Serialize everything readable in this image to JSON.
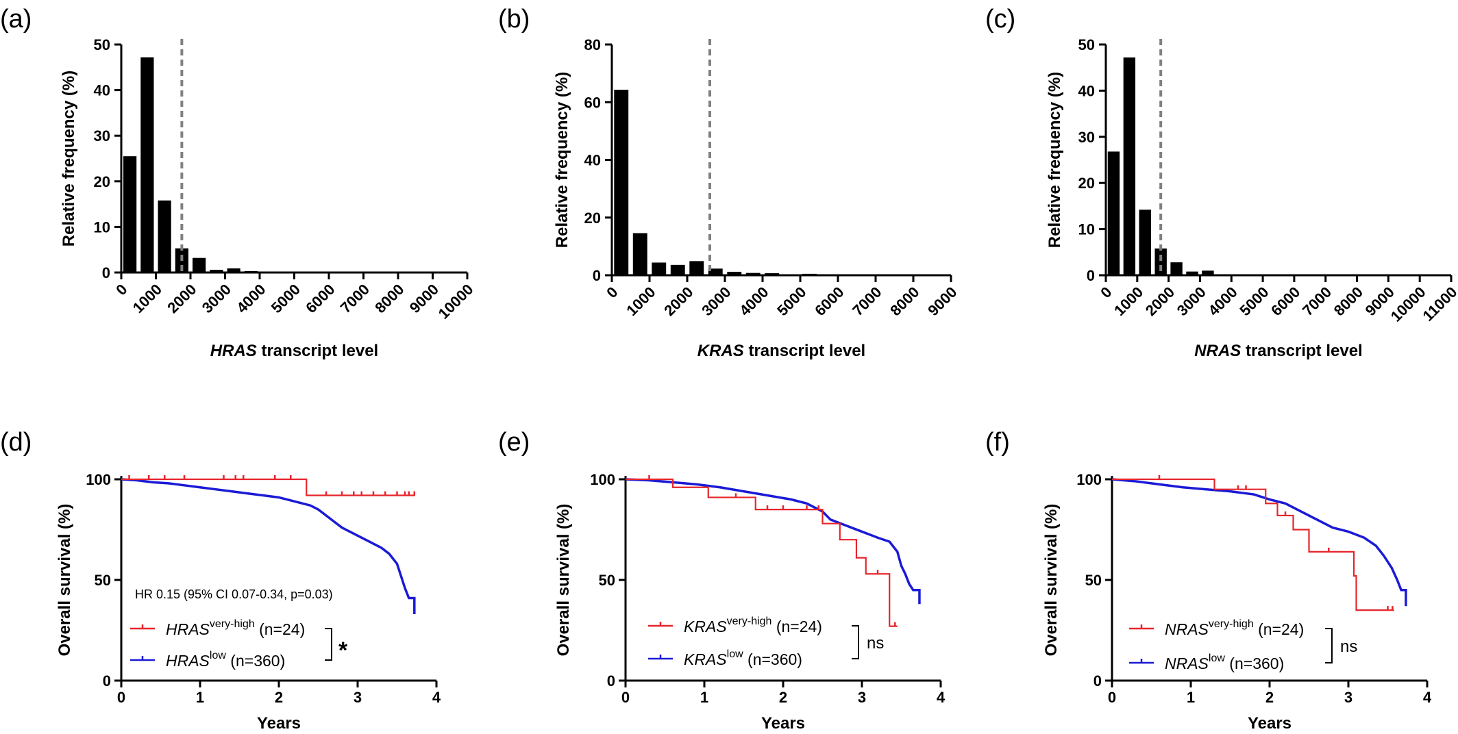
{
  "colors": {
    "bar": "#000000",
    "cutoff_line": "#808080",
    "very_high": "#e8242b",
    "low": "#1a1ad6"
  },
  "chart_data": [
    {
      "panel": "(a)",
      "type": "bar",
      "ylabel": "Relative frequency  (%)",
      "xlabel_gene": "HRAS",
      "xlabel_rest": " transcript level",
      "ylim": [
        0,
        50
      ],
      "yticks": [
        "0",
        "10",
        "20",
        "30",
        "40",
        "50"
      ],
      "xticks": [
        "0",
        "1000",
        "2000",
        "3000",
        "4000",
        "5000",
        "6000",
        "7000",
        "8000",
        "9000",
        "10000"
      ],
      "xmax": 10000,
      "bin_width": 500,
      "values": [
        25.5,
        47.2,
        15.8,
        5.3,
        3.2,
        0.6,
        0.9,
        0.3,
        0.1,
        0,
        0,
        0,
        0,
        0,
        0,
        0,
        0,
        0,
        0,
        0
      ],
      "cutoff": 1750
    },
    {
      "panel": "(b)",
      "type": "bar",
      "ylabel": "Relative frequency (%)",
      "xlabel_gene": "KRAS",
      "xlabel_rest": " transcript level",
      "ylim": [
        0,
        80
      ],
      "yticks": [
        "0",
        "20",
        "40",
        "60",
        "80"
      ],
      "xticks": [
        "0",
        "1000",
        "2000",
        "3000",
        "4000",
        "5000",
        "6000",
        "7000",
        "8000",
        "9000"
      ],
      "xmax": 9000,
      "bin_width": 500,
      "values": [
        64.3,
        14.6,
        4.4,
        3.6,
        4.9,
        2.3,
        1.2,
        0.8,
        0.7,
        0.3,
        0.5,
        0.1,
        0.1,
        0,
        0,
        0,
        0,
        0
      ],
      "cutoff": 2600
    },
    {
      "panel": "(c)",
      "type": "bar",
      "ylabel": "Relative frequency (%)",
      "xlabel_gene": "NRAS",
      "xlabel_rest": " transcript level",
      "ylim": [
        0,
        50
      ],
      "yticks": [
        "0",
        "10",
        "20",
        "30",
        "40",
        "50"
      ],
      "xticks": [
        "0",
        "1000",
        "2000",
        "3000",
        "4000",
        "5000",
        "6000",
        "7000",
        "8000",
        "9000",
        "10000",
        "11000"
      ],
      "xmax": 11000,
      "bin_width": 500,
      "values": [
        26.8,
        47.2,
        14.2,
        5.8,
        2.8,
        0.8,
        1.0,
        0.1,
        0,
        0,
        0,
        0,
        0,
        0,
        0,
        0,
        0,
        0,
        0,
        0,
        0,
        0
      ],
      "cutoff": 1750
    },
    {
      "panel": "(d)",
      "type": "line",
      "ylabel": "Overall survival (%)",
      "xlabel": "Years",
      "ylim": [
        0,
        100
      ],
      "xlim": [
        0,
        4
      ],
      "yticks": [
        "0",
        "50",
        "100"
      ],
      "xticks": [
        "0",
        "1",
        "2",
        "3",
        "4"
      ],
      "annotation": "HR 0.15 (95% CI 0.07-0.34, p=0.03)",
      "significance": "*",
      "series": [
        {
          "name_gene": "HRAS",
          "name_sup": "very-high",
          "name_n": " (n=24)",
          "color": "#e8242b",
          "points": [
            [
              0,
              100
            ],
            [
              2.35,
              100
            ],
            [
              2.35,
              92
            ],
            [
              3.73,
              92
            ]
          ],
          "censors": [
            [
              0.1,
              100
            ],
            [
              0.35,
              100
            ],
            [
              0.55,
              100
            ],
            [
              0.8,
              100
            ],
            [
              1.3,
              100
            ],
            [
              1.45,
              100
            ],
            [
              1.55,
              100
            ],
            [
              1.95,
              100
            ],
            [
              2.15,
              100
            ],
            [
              2.6,
              92
            ],
            [
              2.8,
              92
            ],
            [
              2.95,
              92
            ],
            [
              3.05,
              92
            ],
            [
              3.2,
              92
            ],
            [
              3.35,
              92
            ],
            [
              3.5,
              92
            ],
            [
              3.6,
              92
            ],
            [
              3.65,
              92
            ],
            [
              3.72,
              92
            ]
          ]
        },
        {
          "name_gene": "HRAS",
          "name_sup": "low",
          "name_n": " (n=360)",
          "color": "#1a1ad6",
          "points": [
            [
              0,
              100
            ],
            [
              0.2,
              99.5
            ],
            [
              0.4,
              98.5
            ],
            [
              0.6,
              98
            ],
            [
              0.8,
              97
            ],
            [
              1.0,
              96
            ],
            [
              1.2,
              95
            ],
            [
              1.4,
              94
            ],
            [
              1.6,
              93
            ],
            [
              1.8,
              92
            ],
            [
              2.0,
              91
            ],
            [
              2.2,
              89
            ],
            [
              2.4,
              87
            ],
            [
              2.5,
              85
            ],
            [
              2.6,
              82
            ],
            [
              2.7,
              79
            ],
            [
              2.8,
              76
            ],
            [
              2.9,
              74
            ],
            [
              3.0,
              72
            ],
            [
              3.1,
              70
            ],
            [
              3.2,
              68
            ],
            [
              3.3,
              66
            ],
            [
              3.4,
              63
            ],
            [
              3.5,
              58
            ],
            [
              3.55,
              52
            ],
            [
              3.6,
              46
            ],
            [
              3.65,
              41
            ],
            [
              3.72,
              41
            ],
            [
              3.72,
              33
            ]
          ],
          "censors": []
        }
      ]
    },
    {
      "panel": "(e)",
      "type": "line",
      "ylabel": "Overall survival (%)",
      "xlabel": "Years",
      "ylim": [
        0,
        100
      ],
      "xlim": [
        0,
        4
      ],
      "yticks": [
        "0",
        "50",
        "100"
      ],
      "xticks": [
        "0",
        "1",
        "2",
        "3",
        "4"
      ],
      "significance": "ns",
      "series": [
        {
          "name_gene": "KRAS",
          "name_sup": "very-high",
          "name_n": " (n=24)",
          "color": "#e8242b",
          "points": [
            [
              0,
              100
            ],
            [
              0.6,
              100
            ],
            [
              0.6,
              96
            ],
            [
              1.05,
              96
            ],
            [
              1.05,
              91
            ],
            [
              1.65,
              91
            ],
            [
              1.65,
              85
            ],
            [
              2.5,
              85
            ],
            [
              2.5,
              78
            ],
            [
              2.72,
              78
            ],
            [
              2.72,
              70
            ],
            [
              2.93,
              70
            ],
            [
              2.93,
              61
            ],
            [
              3.05,
              61
            ],
            [
              3.05,
              53
            ],
            [
              3.35,
              53
            ],
            [
              3.35,
              27
            ],
            [
              3.45,
              27
            ]
          ],
          "censors": [
            [
              0.3,
              100
            ],
            [
              1.4,
              91
            ],
            [
              1.8,
              85
            ],
            [
              2.0,
              85
            ],
            [
              2.3,
              85
            ],
            [
              2.45,
              85
            ],
            [
              3.2,
              53
            ],
            [
              3.42,
              27
            ]
          ]
        },
        {
          "name_gene": "KRAS",
          "name_sup": "low",
          "name_n": " (n=360)",
          "color": "#1a1ad6",
          "points": [
            [
              0,
              100
            ],
            [
              0.3,
              99.5
            ],
            [
              0.6,
              98.5
            ],
            [
              0.9,
              97.5
            ],
            [
              1.2,
              96
            ],
            [
              1.5,
              94
            ],
            [
              1.8,
              92
            ],
            [
              2.1,
              90
            ],
            [
              2.3,
              88
            ],
            [
              2.5,
              84
            ],
            [
              2.6,
              80
            ],
            [
              2.8,
              77
            ],
            [
              3.0,
              74
            ],
            [
              3.2,
              71
            ],
            [
              3.35,
              69
            ],
            [
              3.45,
              64
            ],
            [
              3.5,
              57
            ],
            [
              3.55,
              53
            ],
            [
              3.6,
              48
            ],
            [
              3.65,
              45
            ],
            [
              3.73,
              45
            ],
            [
              3.73,
              38
            ]
          ],
          "censors": []
        }
      ]
    },
    {
      "panel": "(f)",
      "type": "line",
      "ylabel": "Overall survival (%)",
      "xlabel": "Years",
      "ylim": [
        0,
        100
      ],
      "xlim": [
        0,
        4
      ],
      "yticks": [
        "0",
        "50",
        "100"
      ],
      "xticks": [
        "0",
        "1",
        "2",
        "3",
        "4"
      ],
      "significance": "ns",
      "series": [
        {
          "name_gene": "NRAS",
          "name_sup": "very-high",
          "name_n": " (n=24)",
          "color": "#e8242b",
          "points": [
            [
              0,
              100
            ],
            [
              1.3,
              100
            ],
            [
              1.3,
              95
            ],
            [
              1.95,
              95
            ],
            [
              1.95,
              88
            ],
            [
              2.1,
              88
            ],
            [
              2.1,
              82
            ],
            [
              2.3,
              82
            ],
            [
              2.3,
              75
            ],
            [
              2.5,
              75
            ],
            [
              2.5,
              64
            ],
            [
              3.07,
              64
            ],
            [
              3.07,
              52
            ],
            [
              3.1,
              52
            ],
            [
              3.1,
              35
            ],
            [
              3.58,
              35
            ]
          ],
          "censors": [
            [
              0.6,
              100
            ],
            [
              1.6,
              95
            ],
            [
              1.7,
              95
            ],
            [
              2.2,
              82
            ],
            [
              2.75,
              64
            ],
            [
              3.5,
              35
            ],
            [
              3.56,
              35
            ]
          ]
        },
        {
          "name_gene": "NRAS",
          "name_sup": "low",
          "name_n": " (n=360)",
          "color": "#1a1ad6",
          "points": [
            [
              0,
              100
            ],
            [
              0.3,
              99
            ],
            [
              0.6,
              97.5
            ],
            [
              0.9,
              96
            ],
            [
              1.2,
              95
            ],
            [
              1.5,
              94
            ],
            [
              1.8,
              92.5
            ],
            [
              2.0,
              90
            ],
            [
              2.2,
              88
            ],
            [
              2.4,
              84
            ],
            [
              2.6,
              80
            ],
            [
              2.8,
              76
            ],
            [
              3.0,
              74
            ],
            [
              3.2,
              71
            ],
            [
              3.35,
              67
            ],
            [
              3.45,
              62
            ],
            [
              3.55,
              56
            ],
            [
              3.62,
              50
            ],
            [
              3.67,
              45
            ],
            [
              3.73,
              45
            ],
            [
              3.73,
              37
            ]
          ],
          "censors": []
        }
      ]
    }
  ]
}
